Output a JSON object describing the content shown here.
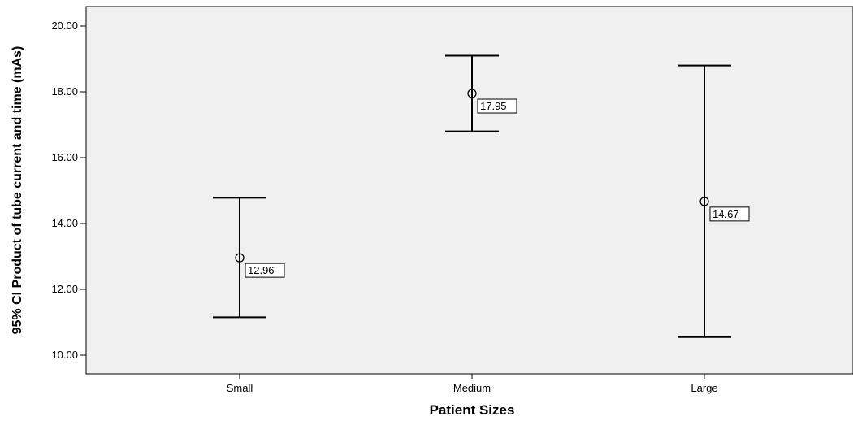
{
  "chart_data": {
    "type": "errorbar",
    "categories": [
      "Small",
      "Medium",
      "Large"
    ],
    "means": [
      12.96,
      17.95,
      14.67
    ],
    "ci_low": [
      11.15,
      16.8,
      10.55
    ],
    "ci_high": [
      14.78,
      19.1,
      18.8
    ],
    "mean_labels": [
      "12.96",
      "17.95",
      "14.67"
    ],
    "xlabel": "Patient Sizes",
    "ylabel": "95% CI Product of tube current and time (mAs)",
    "ylim": [
      9.5,
      20.5
    ],
    "yticks": [
      10,
      12,
      14,
      16,
      18,
      20
    ],
    "ytick_labels": [
      "10.00",
      "12.00",
      "14.00",
      "16.00",
      "18.00",
      "20.00"
    ],
    "grid": false,
    "plot_background": "#f0f0f0",
    "line_color": "#000000"
  }
}
